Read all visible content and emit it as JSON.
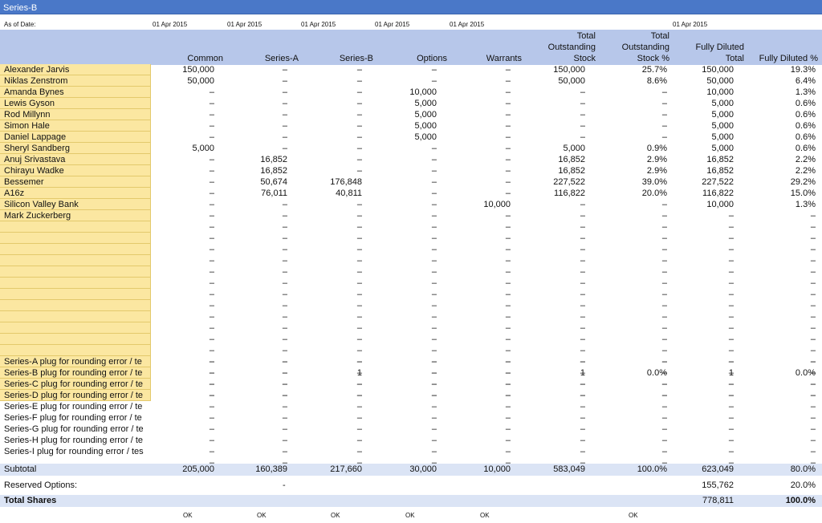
{
  "sheet_title": "Series-B",
  "as_of": {
    "label": "As of Date:",
    "dates": [
      "01 Apr 2015",
      "01 Apr 2015",
      "01 Apr 2015",
      "01 Apr 2015",
      "01 Apr 2015",
      "01 Apr 2015"
    ]
  },
  "columns": [
    "Common",
    "Series-A",
    "Series-B",
    "Options",
    "Warrants",
    "Total\nOutstanding\nStock",
    "Total\nOutstanding\nStock %",
    "Fully Diluted\nTotal",
    "Fully Diluted %"
  ],
  "rows": [
    {
      "name": "Alexander Jarvis",
      "cells": [
        "150,000",
        "–",
        "–",
        "–",
        "–",
        "150,000",
        "25.7%",
        "150,000",
        "19.3%"
      ]
    },
    {
      "name": "Niklas Zenstrom",
      "cells": [
        "50,000",
        "–",
        "–",
        "–",
        "–",
        "50,000",
        "8.6%",
        "50,000",
        "6.4%"
      ]
    },
    {
      "name": "Amanda Bynes",
      "cells": [
        "–",
        "–",
        "–",
        "10,000",
        "–",
        "–",
        "–",
        "10,000",
        "1.3%"
      ]
    },
    {
      "name": "Lewis Gyson",
      "cells": [
        "–",
        "–",
        "–",
        "5,000",
        "–",
        "–",
        "–",
        "5,000",
        "0.6%"
      ]
    },
    {
      "name": "Rod Millynn",
      "cells": [
        "–",
        "–",
        "–",
        "5,000",
        "–",
        "–",
        "–",
        "5,000",
        "0.6%"
      ]
    },
    {
      "name": "Simon Hale",
      "cells": [
        "–",
        "–",
        "–",
        "5,000",
        "–",
        "–",
        "–",
        "5,000",
        "0.6%"
      ]
    },
    {
      "name": "Daniel Lappage",
      "cells": [
        "–",
        "–",
        "–",
        "5,000",
        "–",
        "–",
        "–",
        "5,000",
        "0.6%"
      ]
    },
    {
      "name": "Sheryl Sandberg",
      "cells": [
        "5,000",
        "–",
        "–",
        "–",
        "–",
        "5,000",
        "0.9%",
        "5,000",
        "0.6%"
      ]
    },
    {
      "name": "Anuj Srivastava",
      "cells": [
        "–",
        "16,852",
        "–",
        "–",
        "–",
        "16,852",
        "2.9%",
        "16,852",
        "2.2%"
      ]
    },
    {
      "name": "Chirayu Wadke",
      "cells": [
        "–",
        "16,852",
        "–",
        "–",
        "–",
        "16,852",
        "2.9%",
        "16,852",
        "2.2%"
      ]
    },
    {
      "name": "Bessemer",
      "cells": [
        "–",
        "50,674",
        "176,848",
        "–",
        "–",
        "227,522",
        "39.0%",
        "227,522",
        "29.2%"
      ]
    },
    {
      "name": "A16z",
      "cells": [
        "–",
        "76,011",
        "40,811",
        "–",
        "–",
        "116,822",
        "20.0%",
        "116,822",
        "15.0%"
      ]
    },
    {
      "name": "Silicon Valley Bank",
      "cells": [
        "–",
        "–",
        "–",
        "–",
        "10,000",
        "–",
        "–",
        "10,000",
        "1.3%"
      ]
    },
    {
      "name": "Mark Zuckerberg",
      "cells": [
        "–",
        "–",
        "–",
        "–",
        "–",
        "–",
        "–",
        "–",
        "–"
      ]
    },
    {
      "name": "",
      "cells": [
        "–",
        "–",
        "–",
        "–",
        "–",
        "–",
        "–",
        "–",
        "–"
      ]
    },
    {
      "name": "",
      "cells": [
        "–",
        "–",
        "–",
        "–",
        "–",
        "–",
        "–",
        "–",
        "–"
      ]
    },
    {
      "name": "",
      "cells": [
        "–",
        "–",
        "–",
        "–",
        "–",
        "–",
        "–",
        "–",
        "–"
      ]
    },
    {
      "name": "",
      "cells": [
        "–",
        "–",
        "–",
        "–",
        "–",
        "–",
        "–",
        "–",
        "–"
      ]
    },
    {
      "name": "",
      "cells": [
        "–",
        "–",
        "–",
        "–",
        "–",
        "–",
        "–",
        "–",
        "–"
      ]
    },
    {
      "name": "",
      "cells": [
        "–",
        "–",
        "–",
        "–",
        "–",
        "–",
        "–",
        "–",
        "–"
      ]
    },
    {
      "name": "",
      "cells": [
        "–",
        "–",
        "–",
        "–",
        "–",
        "–",
        "–",
        "–",
        "–"
      ]
    },
    {
      "name": "",
      "cells": [
        "–",
        "–",
        "–",
        "–",
        "–",
        "–",
        "–",
        "–",
        "–"
      ]
    },
    {
      "name": "",
      "cells": [
        "–",
        "–",
        "–",
        "–",
        "–",
        "–",
        "–",
        "–",
        "–"
      ]
    },
    {
      "name": "",
      "cells": [
        "–",
        "–",
        "–",
        "–",
        "–",
        "–",
        "–",
        "–",
        "–"
      ]
    },
    {
      "name": "",
      "cells": [
        "–",
        "–",
        "–",
        "–",
        "–",
        "–",
        "–",
        "–",
        "–"
      ]
    },
    {
      "name": "",
      "cells": [
        "–",
        "–",
        "–",
        "–",
        "–",
        "–",
        "–",
        "–",
        "–"
      ]
    },
    {
      "name": "",
      "cells": [
        "–",
        "–",
        "–",
        "–",
        "–",
        "–",
        "–",
        "–",
        "–"
      ]
    },
    {
      "name": "",
      "cells": [
        "–",
        "–",
        "–",
        "–",
        "–",
        "–",
        "–",
        "–",
        "–"
      ]
    },
    {
      "name": "",
      "cells": [
        "–",
        "–",
        "–",
        "–",
        "–",
        "–",
        "–",
        "–",
        "–"
      ]
    },
    {
      "name": "",
      "cells": [
        "–",
        "–",
        "–",
        "–",
        "–",
        "–",
        "–",
        "–",
        "–"
      ]
    }
  ],
  "plug_rows": [
    {
      "name": "Series-A plug for rounding error / te",
      "cells": [
        "–",
        "–",
        "–",
        "–",
        "–",
        "–",
        "–",
        "–",
        "–"
      ]
    },
    {
      "name": "Series-B plug for rounding error / te",
      "cells": [
        "–",
        "–",
        "1",
        "–",
        "–",
        "1",
        "0.0%",
        "1",
        "0.0%"
      ]
    },
    {
      "name": "Series-C plug for rounding error / te",
      "cells": [
        "–",
        "–",
        "–",
        "–",
        "–",
        "–",
        "–",
        "–",
        "–"
      ]
    },
    {
      "name": "Series-D plug for rounding error / te",
      "cells": [
        "–",
        "–",
        "–",
        "–",
        "–",
        "–",
        "–",
        "–",
        "–"
      ]
    },
    {
      "name": "Series-E plug for rounding error / te",
      "cells": [
        "–",
        "–",
        "–",
        "–",
        "–",
        "–",
        "–",
        "–",
        "–"
      ]
    },
    {
      "name": "Series-F plug for rounding error / te",
      "cells": [
        "–",
        "–",
        "–",
        "–",
        "–",
        "–",
        "–",
        "–",
        "–"
      ]
    },
    {
      "name": "Series-G plug for rounding error / te",
      "cells": [
        "–",
        "–",
        "–",
        "–",
        "–",
        "–",
        "–",
        "–",
        "–"
      ]
    },
    {
      "name": "Series-H plug for rounding error / te",
      "cells": [
        "–",
        "–",
        "–",
        "–",
        "–",
        "–",
        "–",
        "–",
        "–"
      ]
    },
    {
      "name": "Series-I plug for rounding error / tes",
      "cells": [
        "–",
        "–",
        "–",
        "–",
        "–",
        "–",
        "–",
        "–",
        "–"
      ]
    },
    {
      "name": "",
      "cells": [
        "–",
        "–",
        "–",
        "–",
        "–",
        "–",
        "–",
        "–",
        "–"
      ]
    }
  ],
  "subtotal": {
    "label": "Subtotal",
    "cells": [
      "205,000",
      "160,389",
      "217,660",
      "30,000",
      "10,000",
      "583,049",
      "100.0%",
      "623,049",
      "80.0%"
    ]
  },
  "reserved": {
    "label": "Reserved Options:",
    "dash": "-",
    "total": "155,762",
    "pct": "20.0%"
  },
  "total_shares": {
    "label": "Total Shares",
    "total": "778,811",
    "pct": "100.0%"
  },
  "ok_labels": [
    "OK",
    "OK",
    "OK",
    "OK",
    "OK",
    "OK"
  ]
}
